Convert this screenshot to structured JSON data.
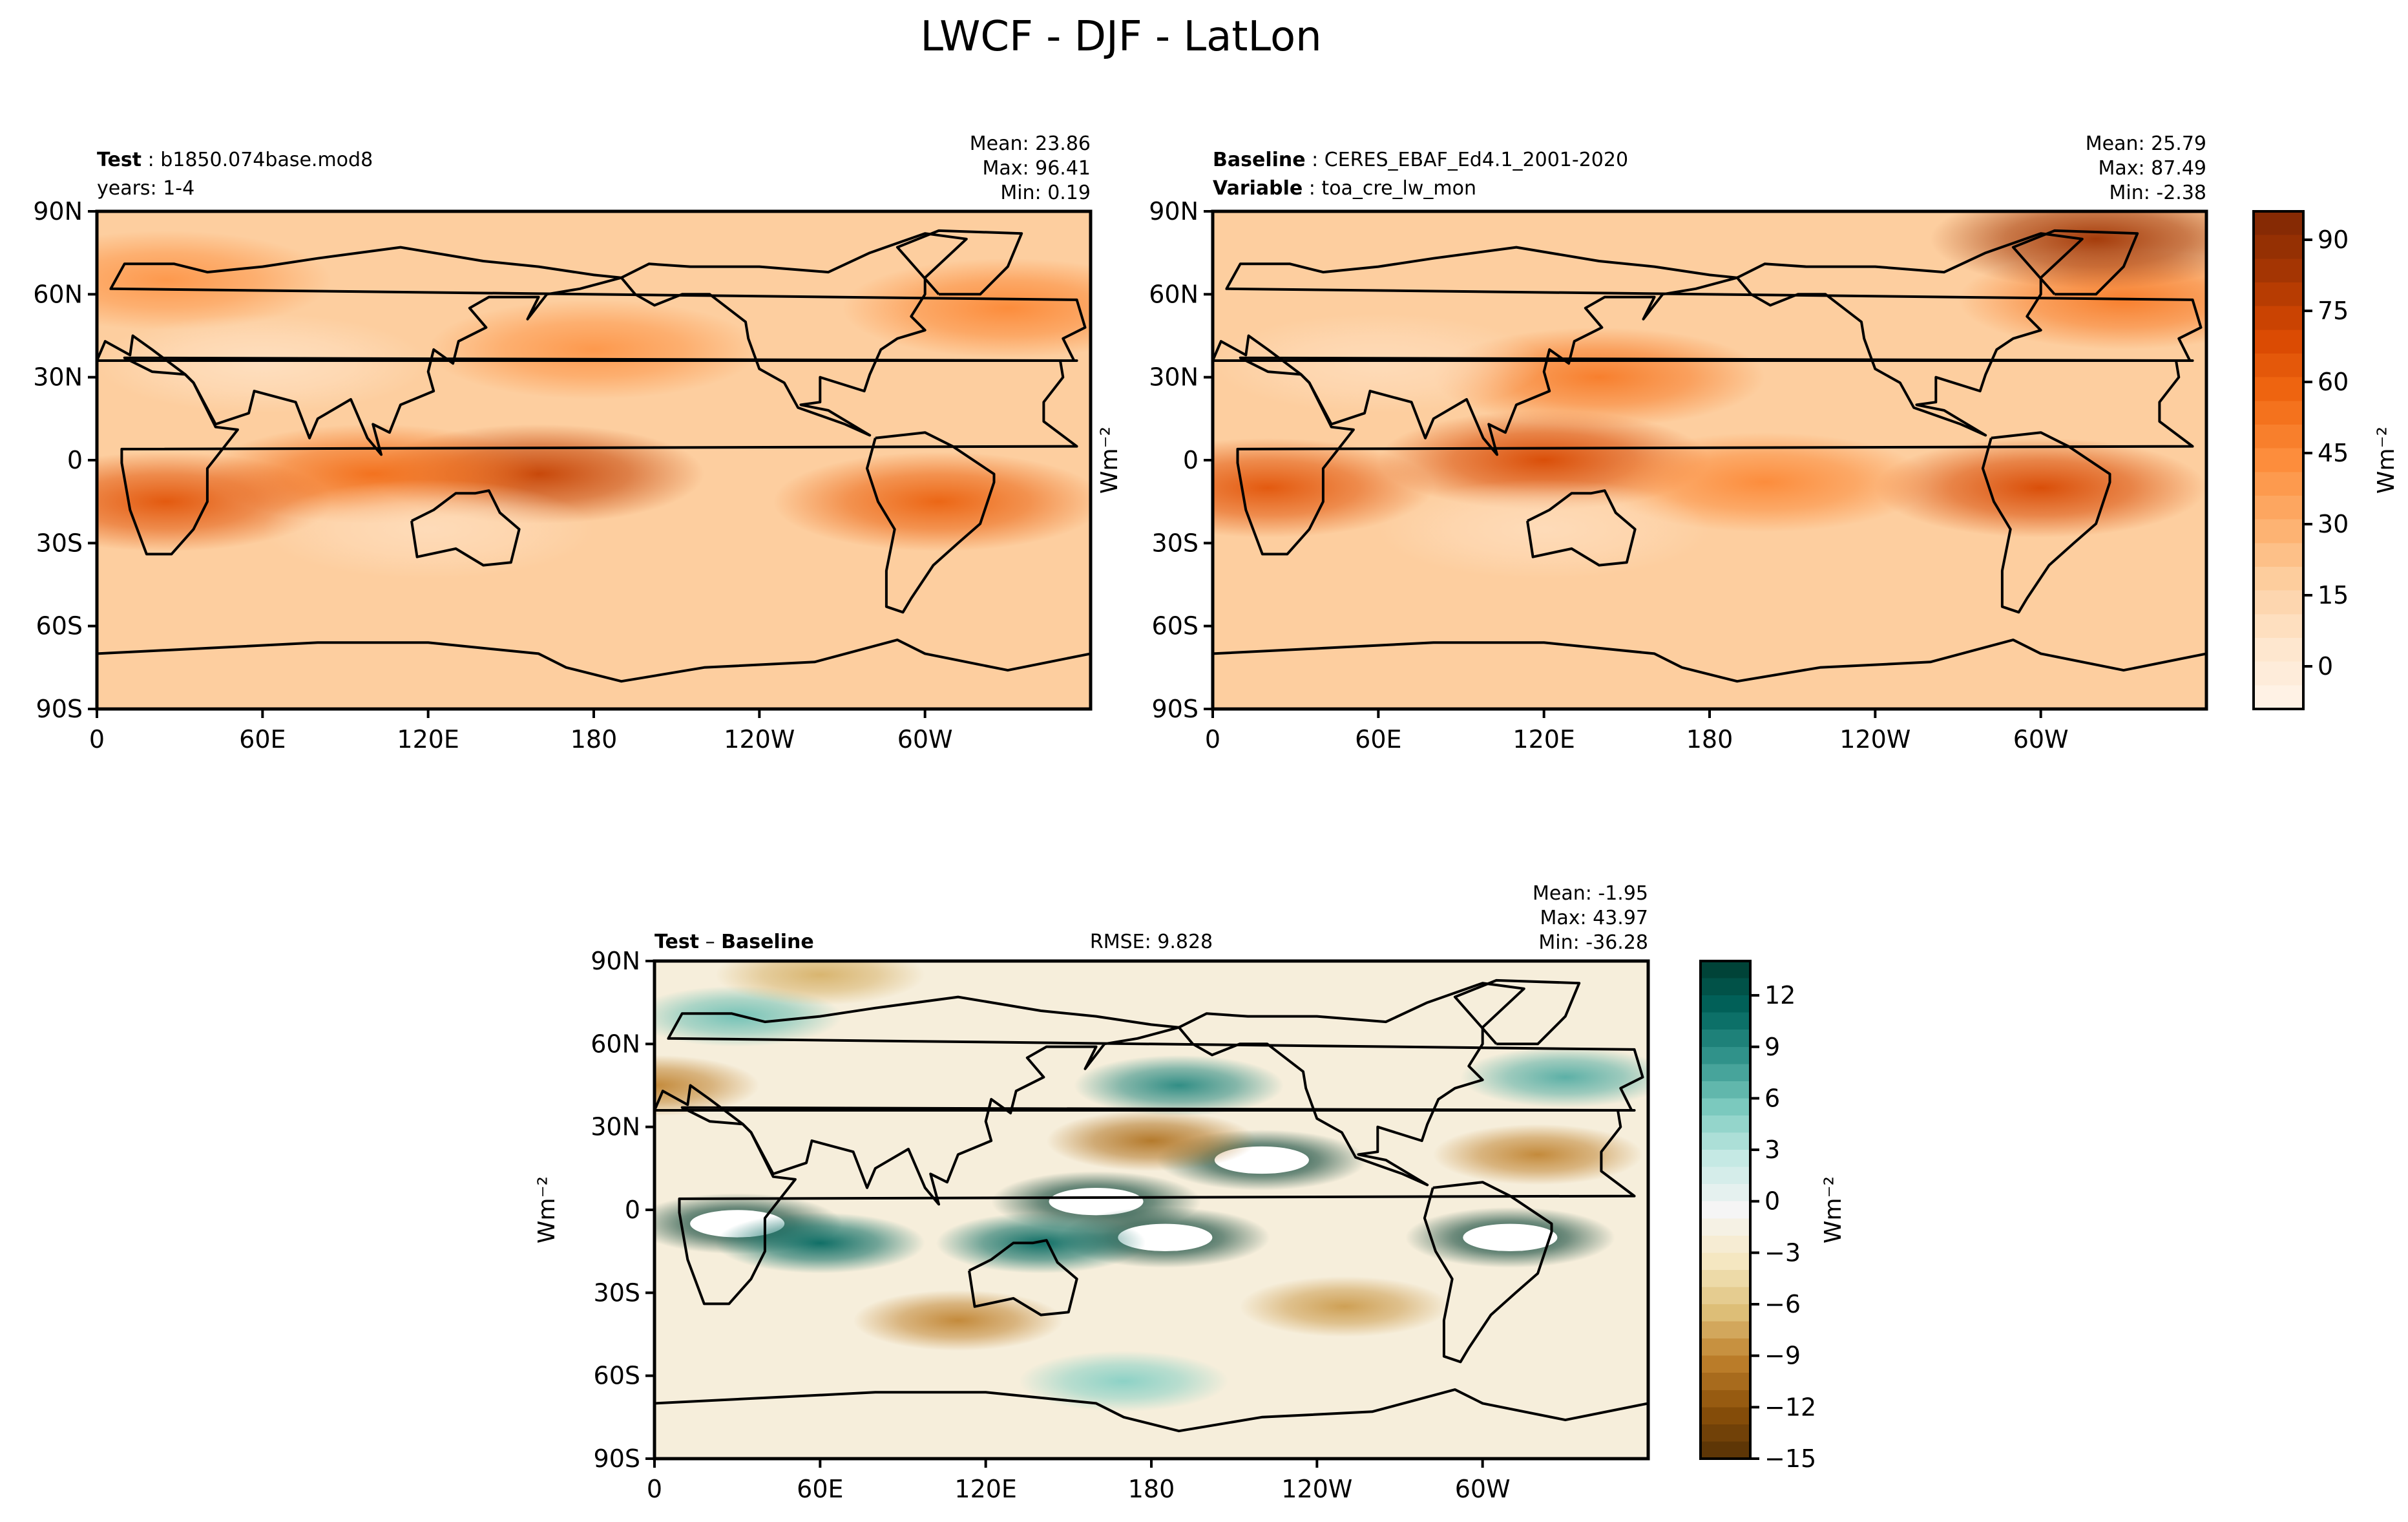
{
  "title": "LWCF - DJF - LatLon",
  "lon_ticks": [
    "0",
    "60E",
    "120E",
    "180",
    "120W",
    "60W"
  ],
  "lat_ticks": [
    "90N",
    "60N",
    "30N",
    "0",
    "30S",
    "60S",
    "90S"
  ],
  "unit_label": "Wm⁻²",
  "panels": [
    {
      "id": "test",
      "left_lines": [
        {
          "bold": "Test",
          "rest": " : b1850.074base.mod8"
        },
        {
          "bold": "",
          "rest": "years: 1-4"
        }
      ],
      "stats": [
        "Mean: 23.86",
        "Max: 96.41",
        "Min:  0.19"
      ],
      "ylabel": ""
    },
    {
      "id": "baseline",
      "left_lines": [
        {
          "bold": "Baseline",
          "rest": " : CERES_EBAF_Ed4.1_2001-2020"
        },
        {
          "bold": "Variable",
          "rest": " : toa_cre_lw_mon"
        }
      ],
      "stats": [
        "Mean: 25.79",
        "Max: 87.49",
        "Min: -2.38"
      ],
      "ylabel": "Wm⁻²"
    },
    {
      "id": "diff",
      "left_lines": [
        {
          "bold": "Test",
          "rest": " – ",
          "bold2": "Baseline"
        }
      ],
      "center_text": "RMSE: 9.828",
      "stats": [
        "Mean: -1.95",
        "Max: 43.97",
        "Min: -36.28"
      ],
      "ylabel": "Wm⁻²"
    }
  ],
  "colorbars": [
    {
      "id": "lwcf-colorbar",
      "range": [
        -9,
        96
      ],
      "ticks": [
        "0",
        "15",
        "30",
        "45",
        "60",
        "75",
        "90"
      ],
      "tick_values": [
        0,
        15,
        30,
        45,
        60,
        75,
        90
      ],
      "label": "Wm⁻²",
      "colors": [
        "#fff5eb",
        "#fee6ce",
        "#fdd0a2",
        "#fdae6b",
        "#fd8d3c",
        "#f16913",
        "#d94801",
        "#a63603",
        "#7f2704"
      ]
    },
    {
      "id": "diff-colorbar",
      "range": [
        -15,
        14
      ],
      "ticks": [
        "12",
        "9",
        "6",
        "3",
        "0",
        "−3",
        "−6",
        "−9",
        "−12",
        "−15"
      ],
      "tick_values": [
        12,
        9,
        6,
        3,
        0,
        -3,
        -6,
        -9,
        -12,
        -15
      ],
      "label": "Wm⁻²",
      "colors": [
        "#543005",
        "#8c510a",
        "#bf812d",
        "#dfc27d",
        "#f6e8c3",
        "#f5f5f5",
        "#c7eae5",
        "#80cdc1",
        "#35978f",
        "#01665e",
        "#003c30"
      ]
    }
  ],
  "chart_data": [
    {
      "type": "heatmap",
      "title": "Test : b1850.074base.mod8",
      "subtitle": "years: 1-4",
      "xlabel": "",
      "ylabel": "",
      "xlim": [
        0,
        360
      ],
      "ylim": [
        -90,
        90
      ],
      "color_range": [
        -9,
        96
      ],
      "stats": {
        "mean": 23.86,
        "max": 96.41,
        "min": 0.19
      },
      "features": [
        {
          "lon": 160,
          "lat": -5,
          "value": 75
        },
        {
          "lon": 100,
          "lat": -5,
          "value": 55
        },
        {
          "lon": 25,
          "lat": -15,
          "value": 65
        },
        {
          "lon": 305,
          "lat": -15,
          "value": 60
        },
        {
          "lon": 180,
          "lat": 40,
          "value": 40
        },
        {
          "lon": 330,
          "lat": 55,
          "value": 45
        },
        {
          "lon": 25,
          "lat": 65,
          "value": 40
        },
        {
          "lon": 60,
          "lat": 35,
          "value": 8
        },
        {
          "lon": 120,
          "lat": -25,
          "value": 10
        }
      ]
    },
    {
      "type": "heatmap",
      "title": "Baseline : CERES_EBAF_Ed4.1_2001-2020",
      "subtitle": "Variable : toa_cre_lw_mon",
      "xlabel": "",
      "ylabel": "Wm⁻²",
      "xlim": [
        0,
        360
      ],
      "ylim": [
        -90,
        90
      ],
      "color_range": [
        -9,
        96
      ],
      "stats": {
        "mean": 25.79,
        "max": 87.49,
        "min": -2.38
      },
      "features": [
        {
          "lon": 120,
          "lat": 0,
          "value": 70
        },
        {
          "lon": 20,
          "lat": -10,
          "value": 65
        },
        {
          "lon": 300,
          "lat": -10,
          "value": 70
        },
        {
          "lon": 200,
          "lat": -8,
          "value": 45
        },
        {
          "lon": 140,
          "lat": 30,
          "value": 50
        },
        {
          "lon": 330,
          "lat": 58,
          "value": 50
        },
        {
          "lon": 320,
          "lat": 80,
          "value": 85
        },
        {
          "lon": 60,
          "lat": 35,
          "value": 10
        },
        {
          "lon": 120,
          "lat": -25,
          "value": 10
        }
      ]
    },
    {
      "type": "heatmap",
      "title": "Test – Baseline",
      "subtitle": "RMSE: 9.828",
      "xlabel": "",
      "ylabel": "Wm⁻²",
      "xlim": [
        0,
        360
      ],
      "ylim": [
        -90,
        90
      ],
      "color_range": [
        -15,
        14
      ],
      "stats": {
        "mean": -1.95,
        "max": 43.97,
        "min": -36.28,
        "rmse": 9.828
      },
      "features": [
        {
          "lon": 160,
          "lat": 3,
          "value": 20
        },
        {
          "lon": 185,
          "lat": -10,
          "value": 20
        },
        {
          "lon": 30,
          "lat": -5,
          "value": 20
        },
        {
          "lon": 310,
          "lat": -10,
          "value": 16
        },
        {
          "lon": 220,
          "lat": 18,
          "value": 16
        },
        {
          "lon": 140,
          "lat": -12,
          "value": 11
        },
        {
          "lon": 60,
          "lat": -12,
          "value": 11
        },
        {
          "lon": 190,
          "lat": 45,
          "value": 9
        },
        {
          "lon": 30,
          "lat": 70,
          "value": 6
        },
        {
          "lon": 330,
          "lat": 48,
          "value": 7
        },
        {
          "lon": 180,
          "lat": 25,
          "value": -10
        },
        {
          "lon": 110,
          "lat": -40,
          "value": -9
        },
        {
          "lon": 250,
          "lat": -35,
          "value": -8
        },
        {
          "lon": 320,
          "lat": 20,
          "value": -9
        },
        {
          "lon": 0,
          "lat": 45,
          "value": -9
        },
        {
          "lon": 60,
          "lat": 85,
          "value": -7
        },
        {
          "lon": 170,
          "lat": -62,
          "value": 5
        }
      ]
    }
  ]
}
